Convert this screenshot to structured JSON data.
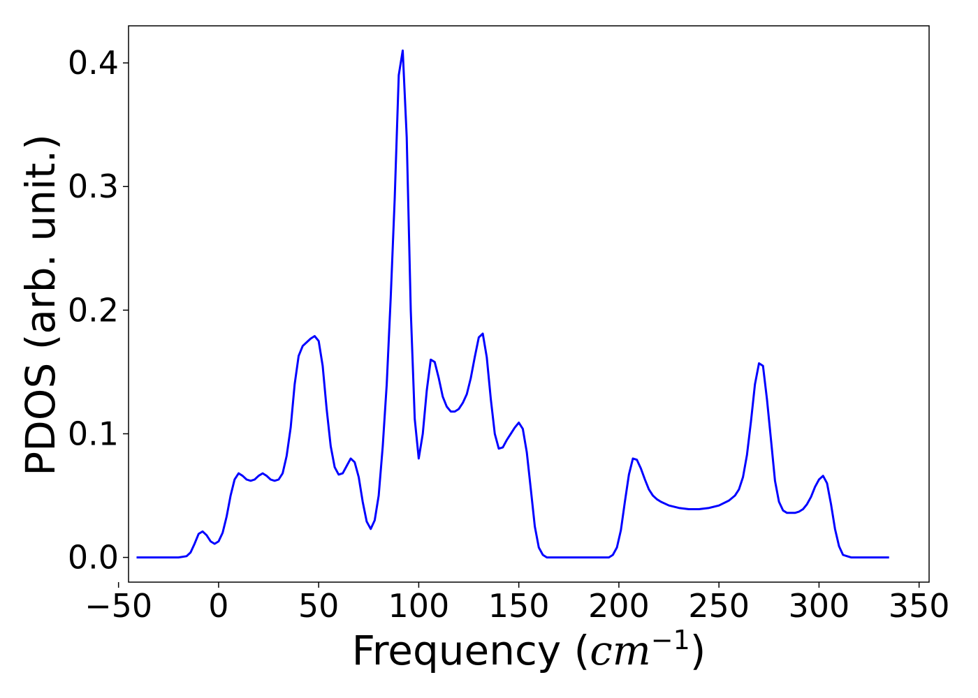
{
  "chart_data": {
    "type": "line",
    "title": "",
    "xlabel": "Frequency (cm^-1)",
    "xlabel_parts": {
      "prefix": "Frequency (",
      "base": "cm",
      "sup": "−1",
      "suffix": ")"
    },
    "ylabel": "PDOS (arb. unit.)",
    "xlim": [
      -45,
      355
    ],
    "ylim": [
      -0.02,
      0.43
    ],
    "xticks": [
      -50,
      0,
      50,
      100,
      150,
      200,
      250,
      300,
      350
    ],
    "xtick_labels": [
      "−50",
      "0",
      "50",
      "100",
      "150",
      "200",
      "250",
      "300",
      "350"
    ],
    "yticks": [
      0.0,
      0.1,
      0.2,
      0.3,
      0.4
    ],
    "ytick_labels": [
      "0.0",
      "0.1",
      "0.2",
      "0.3",
      "0.4"
    ],
    "grid": false,
    "line_color": "#0000ff",
    "series": [
      {
        "x": [
          -41,
          -20,
          -16,
          -14,
          -12,
          -10,
          -8,
          -6,
          -4,
          -2,
          0,
          2,
          4,
          6,
          8,
          10,
          12,
          14,
          16,
          18,
          20,
          22,
          24,
          26,
          28,
          30,
          32,
          34,
          36,
          38,
          40,
          42,
          44,
          46,
          48,
          50,
          52,
          54,
          56,
          58,
          60,
          62,
          64,
          66,
          68,
          70,
          72,
          74,
          76,
          78,
          80,
          82,
          84,
          86,
          88,
          90,
          92,
          94,
          96,
          98,
          100,
          102,
          104,
          106,
          108,
          110,
          112,
          114,
          116,
          118,
          120,
          122,
          124,
          126,
          128,
          130,
          132,
          134,
          136,
          138,
          140,
          142,
          144,
          146,
          148,
          150,
          152,
          154,
          156,
          158,
          160,
          162,
          164,
          166,
          168,
          170,
          195,
          197,
          199,
          201,
          203,
          205,
          207,
          209,
          211,
          213,
          215,
          217,
          219,
          221,
          225,
          230,
          235,
          240,
          245,
          250,
          255,
          258,
          260,
          262,
          264,
          266,
          268,
          270,
          272,
          274,
          276,
          278,
          280,
          282,
          284,
          286,
          288,
          290,
          292,
          294,
          296,
          298,
          300,
          302,
          304,
          306,
          308,
          310,
          312,
          314,
          316,
          320,
          335
        ],
        "y": [
          0.0,
          0.0,
          0.001,
          0.004,
          0.011,
          0.019,
          0.021,
          0.018,
          0.013,
          0.011,
          0.013,
          0.02,
          0.033,
          0.05,
          0.063,
          0.068,
          0.066,
          0.063,
          0.062,
          0.063,
          0.066,
          0.068,
          0.066,
          0.063,
          0.062,
          0.063,
          0.068,
          0.082,
          0.105,
          0.14,
          0.163,
          0.171,
          0.174,
          0.177,
          0.179,
          0.175,
          0.155,
          0.12,
          0.09,
          0.073,
          0.067,
          0.068,
          0.074,
          0.08,
          0.077,
          0.065,
          0.045,
          0.029,
          0.023,
          0.03,
          0.05,
          0.09,
          0.14,
          0.21,
          0.29,
          0.39,
          0.41,
          0.34,
          0.2,
          0.112,
          0.08,
          0.1,
          0.135,
          0.16,
          0.158,
          0.145,
          0.13,
          0.122,
          0.118,
          0.118,
          0.12,
          0.125,
          0.132,
          0.145,
          0.162,
          0.178,
          0.181,
          0.162,
          0.128,
          0.1,
          0.088,
          0.089,
          0.095,
          0.1,
          0.105,
          0.109,
          0.104,
          0.085,
          0.055,
          0.025,
          0.008,
          0.002,
          0.0,
          0.0,
          0.0,
          0.0,
          0.0,
          0.002,
          0.008,
          0.022,
          0.045,
          0.067,
          0.08,
          0.079,
          0.072,
          0.063,
          0.055,
          0.05,
          0.047,
          0.045,
          0.042,
          0.04,
          0.039,
          0.039,
          0.04,
          0.042,
          0.046,
          0.05,
          0.055,
          0.065,
          0.083,
          0.11,
          0.14,
          0.157,
          0.155,
          0.128,
          0.095,
          0.062,
          0.045,
          0.038,
          0.036,
          0.036,
          0.036,
          0.037,
          0.039,
          0.043,
          0.049,
          0.057,
          0.063,
          0.066,
          0.06,
          0.043,
          0.023,
          0.009,
          0.002,
          0.001,
          0.0,
          0.0,
          0.0
        ]
      }
    ]
  }
}
